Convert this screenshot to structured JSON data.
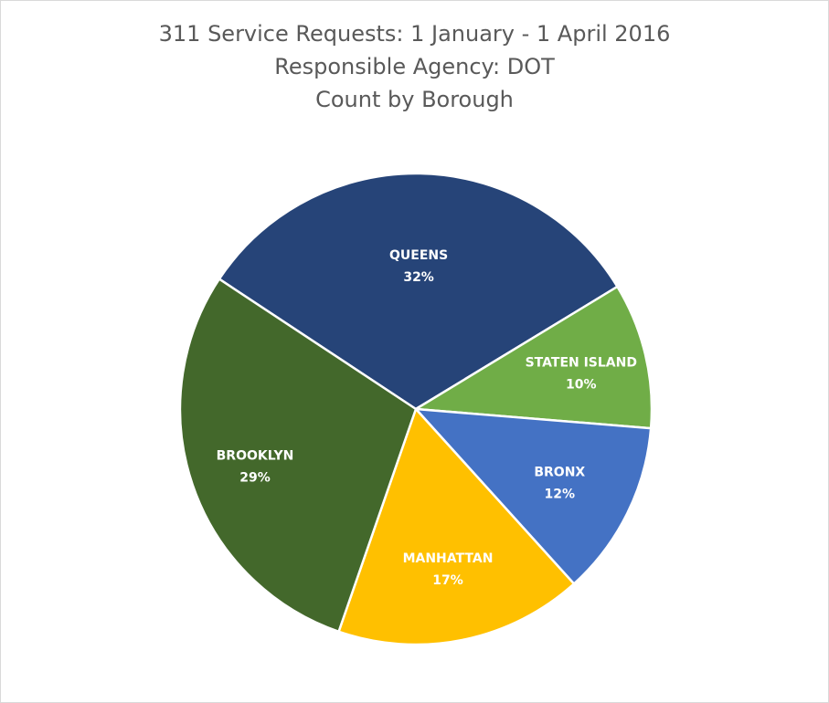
{
  "chart_data": {
    "type": "pie",
    "title": [
      "311 Service Requests: 1 January - 1 April 2016",
      "Responsible Agency: DOT",
      "Count by Borough"
    ],
    "slices": [
      {
        "label": "QUEENS",
        "value": 32,
        "pct_label": "32%",
        "color": "#264478"
      },
      {
        "label": "STATEN ISLAND",
        "value": 10,
        "pct_label": "10%",
        "color": "#70AD47"
      },
      {
        "label": "BRONX",
        "value": 12,
        "pct_label": "12%",
        "color": "#4472C4"
      },
      {
        "label": "MANHATTAN",
        "value": 17,
        "pct_label": "17%",
        "color": "#FFC000"
      },
      {
        "label": "BROOKLYN",
        "value": 29,
        "pct_label": "29%",
        "color": "#43682B"
      }
    ],
    "legend": "none"
  }
}
